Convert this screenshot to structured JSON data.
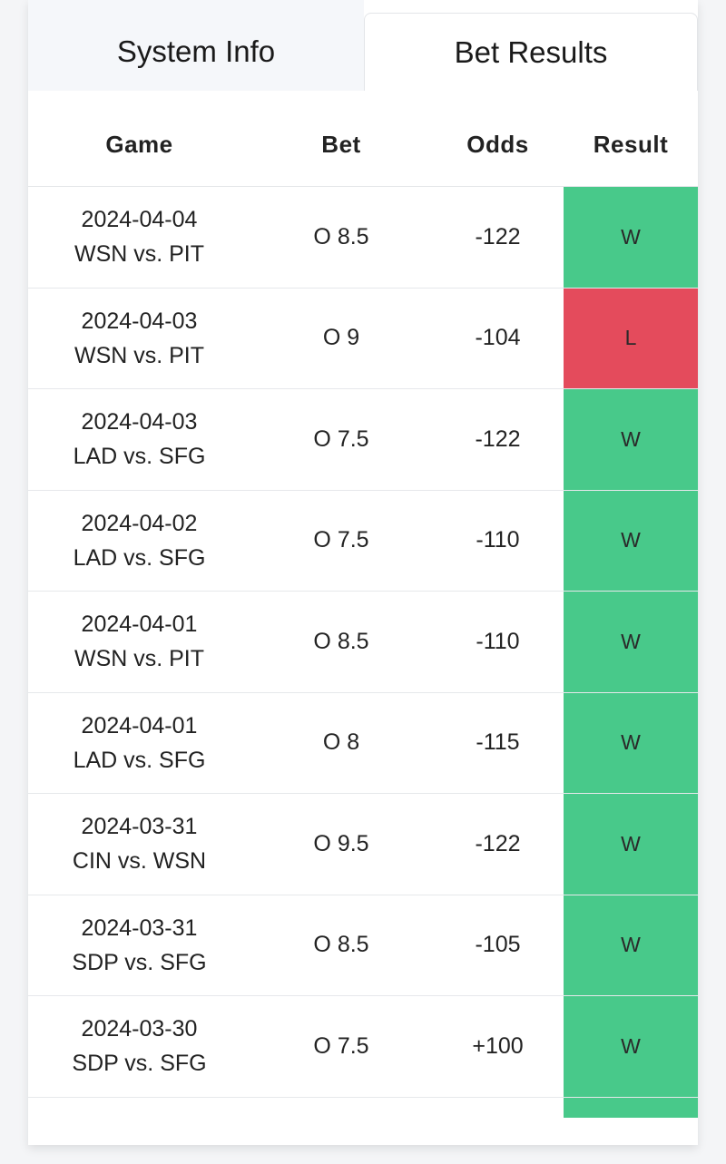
{
  "tabs": [
    {
      "label": "System Info",
      "active": false
    },
    {
      "label": "Bet Results",
      "active": true
    }
  ],
  "table": {
    "headers": {
      "game": "Game",
      "bet": "Bet",
      "odds": "Odds",
      "result": "Result"
    },
    "rows": [
      {
        "date": "2024-04-04",
        "matchup": "WSN vs. PIT",
        "bet": "O 8.5",
        "odds": "-122",
        "result": "W"
      },
      {
        "date": "2024-04-03",
        "matchup": "WSN vs. PIT",
        "bet": "O 9",
        "odds": "-104",
        "result": "L"
      },
      {
        "date": "2024-04-03",
        "matchup": "LAD vs. SFG",
        "bet": "O 7.5",
        "odds": "-122",
        "result": "W"
      },
      {
        "date": "2024-04-02",
        "matchup": "LAD vs. SFG",
        "bet": "O 7.5",
        "odds": "-110",
        "result": "W"
      },
      {
        "date": "2024-04-01",
        "matchup": "WSN vs. PIT",
        "bet": "O 8.5",
        "odds": "-110",
        "result": "W"
      },
      {
        "date": "2024-04-01",
        "matchup": "LAD vs. SFG",
        "bet": "O 8",
        "odds": "-115",
        "result": "W"
      },
      {
        "date": "2024-03-31",
        "matchup": "CIN vs. WSN",
        "bet": "O 9.5",
        "odds": "-122",
        "result": "W"
      },
      {
        "date": "2024-03-31",
        "matchup": "SDP vs. SFG",
        "bet": "O 8.5",
        "odds": "-105",
        "result": "W"
      },
      {
        "date": "2024-03-30",
        "matchup": "SDP vs. SFG",
        "bet": "O 7.5",
        "odds": "+100",
        "result": "W"
      }
    ]
  },
  "colors": {
    "win": "#48c98a",
    "loss": "#e44b5c",
    "tab_inactive_bg": "#f5f7fa"
  }
}
